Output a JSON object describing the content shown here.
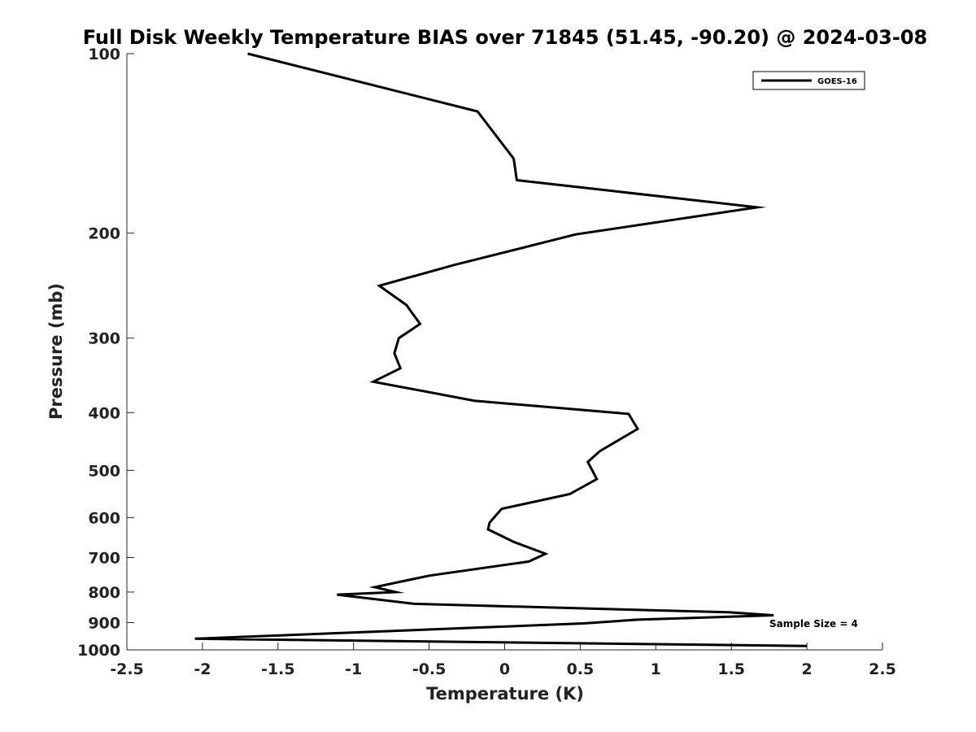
{
  "chart_data": {
    "type": "line",
    "title": "Full Disk Weekly Temperature BIAS over 71845 (51.45, -90.20) @ 2024-03-08",
    "xlabel": "Temperature (K)",
    "ylabel": "Pressure (mb)",
    "xlim": [
      -2.5,
      2.5
    ],
    "ylim": [
      1000,
      100
    ],
    "yscale": "log",
    "y_reversed": true,
    "x_ticks": [
      -2.5,
      -2,
      -1.5,
      -1,
      -0.5,
      0,
      0.5,
      1,
      1.5,
      2,
      2.5
    ],
    "x_tick_labels": [
      "-2.5",
      "-2",
      "-1.5",
      "-1",
      "-0.5",
      "0",
      "0.5",
      "1",
      "1.5",
      "2",
      "2.5"
    ],
    "y_ticks": [
      100,
      200,
      300,
      400,
      500,
      600,
      700,
      800,
      900,
      1000
    ],
    "y_tick_labels": [
      "100",
      "200",
      "300",
      "400",
      "500",
      "600",
      "700",
      "800",
      "900",
      "1000"
    ],
    "grid": false,
    "legend_position": "top-right",
    "annotation": "Sample Size = 4",
    "series": [
      {
        "name": "GOES-16",
        "color": "#000000",
        "x": [
          -1.7,
          -0.18,
          0.06,
          0.08,
          1.67,
          0.47,
          -0.33,
          -0.83,
          -0.65,
          -0.56,
          -0.7,
          -0.73,
          -0.69,
          -0.87,
          -0.2,
          0.82,
          0.88,
          0.63,
          0.55,
          0.61,
          0.43,
          -0.02,
          -0.1,
          -0.11,
          0.06,
          0.27,
          0.16,
          -0.5,
          -0.86,
          -0.72,
          -1.11,
          -0.6,
          1.48,
          1.78,
          0.88,
          0.52,
          -0.2,
          -2.05,
          2.0
        ],
        "y": [
          100,
          125,
          150,
          163,
          181,
          201,
          226,
          245,
          264,
          284,
          300,
          318,
          337,
          355,
          382,
          402,
          426,
          464,
          484,
          517,
          548,
          580,
          612,
          628,
          659,
          690,
          711,
          751,
          785,
          800,
          808,
          837,
          865,
          875,
          890,
          903,
          918,
          958,
          985
        ]
      }
    ]
  }
}
